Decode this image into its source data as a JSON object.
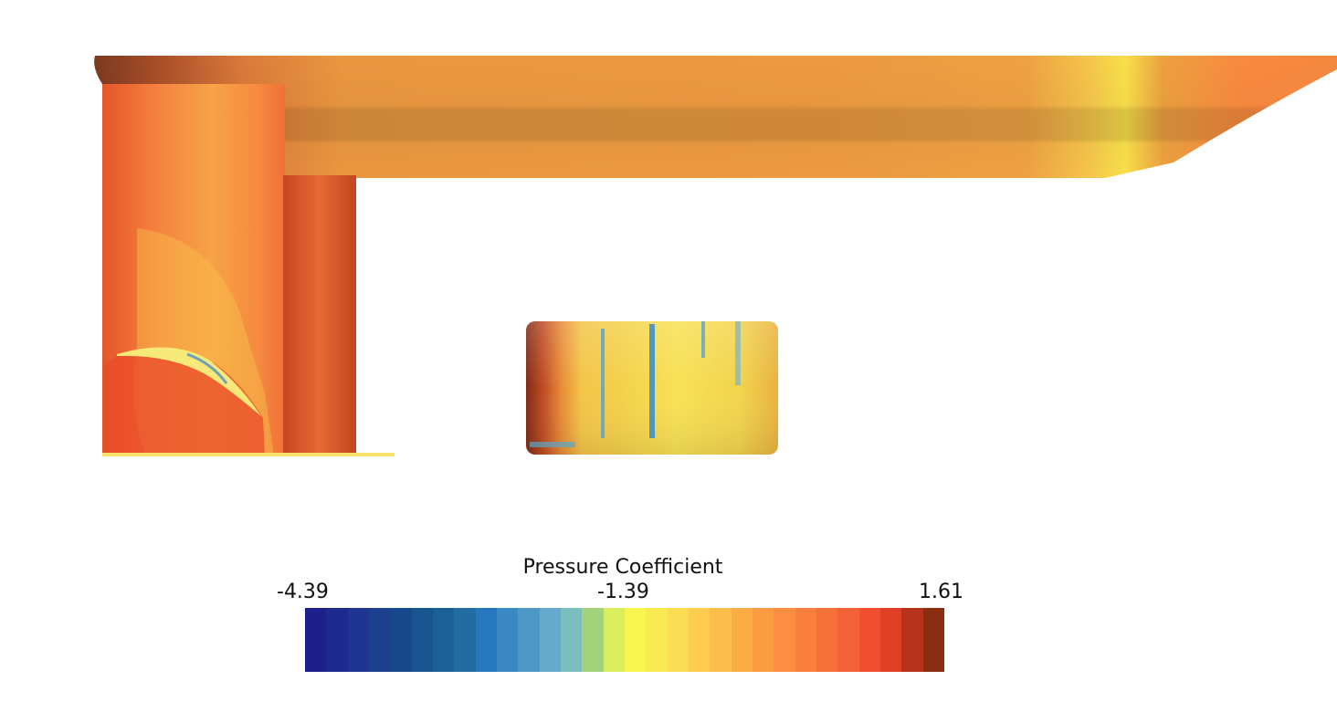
{
  "legend": {
    "title": "Pressure Coefficient",
    "min_label": "-4.39",
    "mid_label": "-1.39",
    "max_label": "1.61",
    "range": [
      -4.39,
      1.61
    ],
    "colors": [
      "#1d1f8a",
      "#1f2a8e",
      "#1f3591",
      "#1d3f8f",
      "#18488c",
      "#18548f",
      "#1c6098",
      "#206ca3",
      "#2677bd",
      "#3a88c4",
      "#4e98c8",
      "#63aacd",
      "#7abfc0",
      "#a3d27a",
      "#daed5c",
      "#f8f64e",
      "#f9ea52",
      "#fbdc52",
      "#fccd4f",
      "#fdbd4a",
      "#fcac45",
      "#fc9c42",
      "#fb8e40",
      "#fa7f3d",
      "#f6703a",
      "#f36136",
      "#f04e2f",
      "#df3f24",
      "#b7321b",
      "#8a2e11"
    ]
  },
  "scene": {
    "hull_gradient": [
      "#7a3a1f",
      "#a84d28",
      "#d97a3a",
      "#e9973f",
      "#ec9a40",
      "#ec9a40",
      "#f0b24a",
      "#f6d145",
      "#eea142",
      "#f98a3f",
      "#f5883e"
    ],
    "pod_gradient": [
      "#7e2c16",
      "#c24d23",
      "#e88b37",
      "#f3c448",
      "#f4d24a",
      "#f7e154",
      "#f2d34c",
      "#e8b23f"
    ]
  }
}
